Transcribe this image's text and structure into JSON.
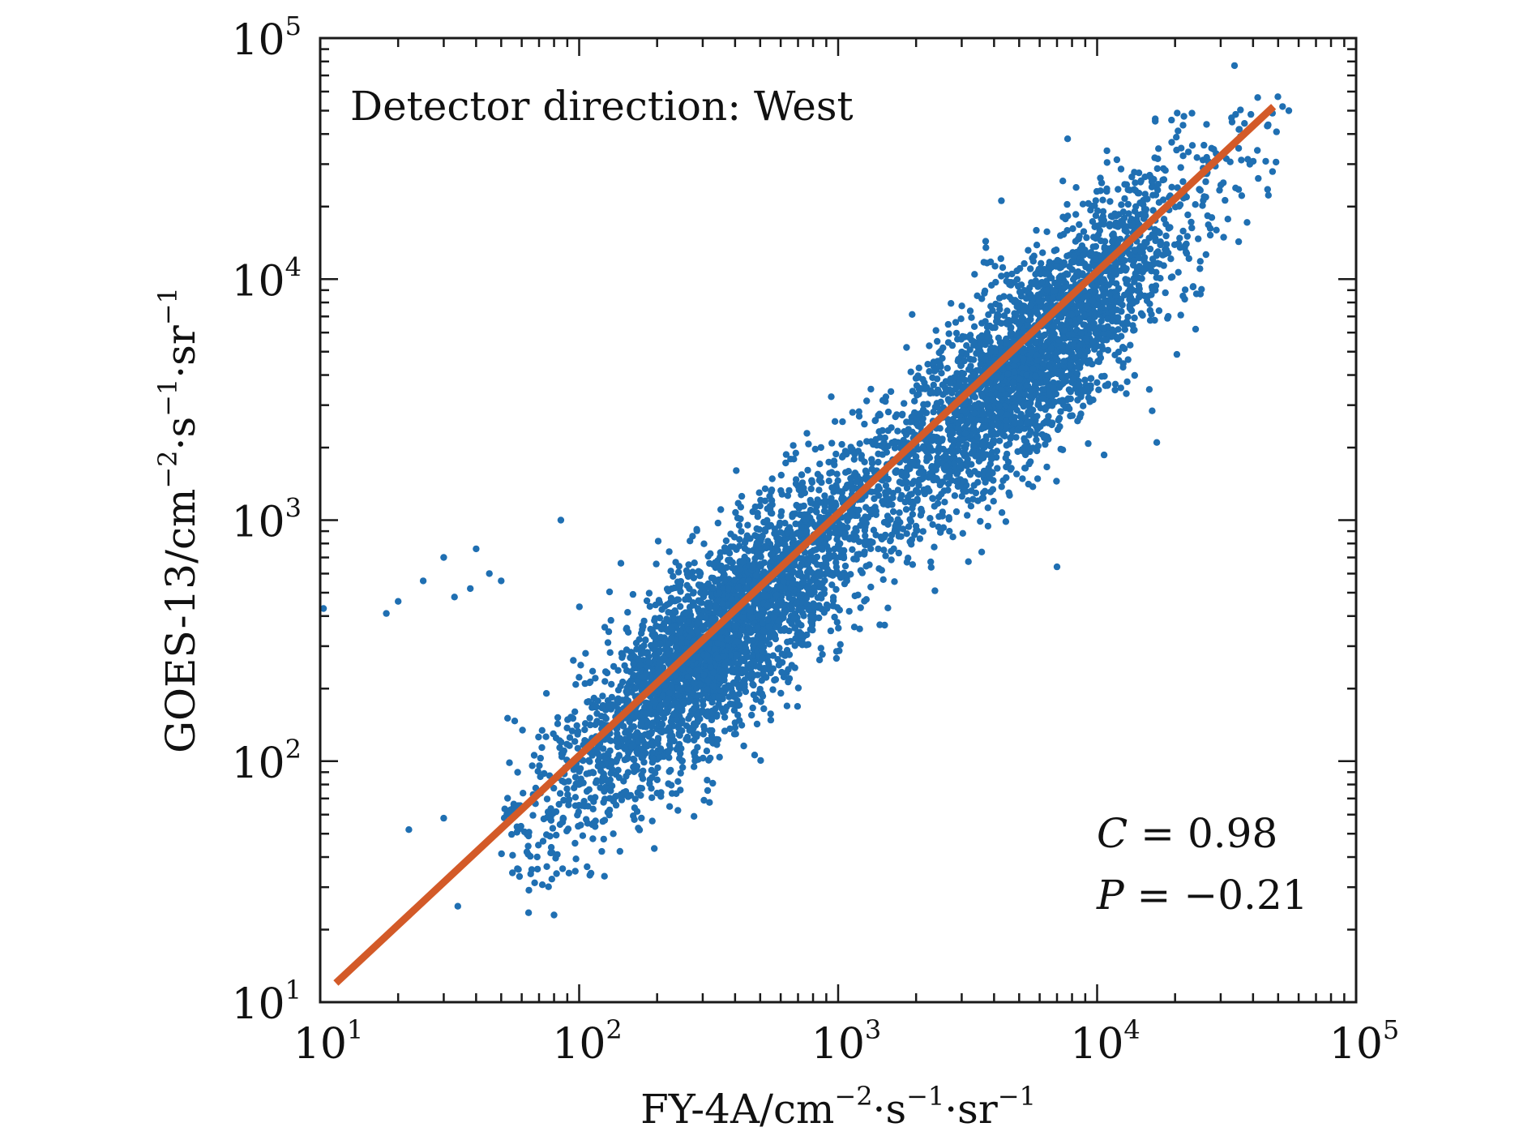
{
  "chart_data": {
    "type": "scatter",
    "x_scale": "log",
    "y_scale": "log",
    "xlim": [
      10,
      100000
    ],
    "ylim": [
      10,
      100000
    ],
    "x_ticks": [
      {
        "base": "10",
        "exp": "1"
      },
      {
        "base": "10",
        "exp": "2"
      },
      {
        "base": "10",
        "exp": "3"
      },
      {
        "base": "10",
        "exp": "4"
      },
      {
        "base": "10",
        "exp": "5"
      }
    ],
    "y_ticks": [
      {
        "base": "10",
        "exp": "1"
      },
      {
        "base": "10",
        "exp": "2"
      },
      {
        "base": "10",
        "exp": "3"
      },
      {
        "base": "10",
        "exp": "4"
      },
      {
        "base": "10",
        "exp": "5"
      }
    ],
    "xlabel": {
      "parts": [
        {
          "t": "FY-4A/cm",
          "sup": false
        },
        {
          "t": "−2",
          "sup": true
        },
        {
          "t": "·s",
          "sup": false
        },
        {
          "t": "−1",
          "sup": true
        },
        {
          "t": "·sr",
          "sup": false
        },
        {
          "t": "−1",
          "sup": true
        }
      ]
    },
    "ylabel": {
      "parts": [
        {
          "t": "GOES-13/cm",
          "sup": false
        },
        {
          "t": "−2",
          "sup": true
        },
        {
          "t": "·s",
          "sup": false
        },
        {
          "t": "−1",
          "sup": true
        },
        {
          "t": "·sr",
          "sup": false
        },
        {
          "t": "−1",
          "sup": true
        }
      ]
    },
    "annotation": "Detector direction: West",
    "stats": [
      {
        "label": "C",
        "value": "= 0.98"
      },
      {
        "label": "P",
        "value": "= −0.21"
      }
    ],
    "fit_line": {
      "x": [
        11.5,
        48000
      ],
      "y": [
        12,
        52000
      ]
    },
    "grid": false,
    "point_color": "#1f6fb2",
    "line_color": "#d35a28",
    "point_count": 6000,
    "outliers": [
      {
        "x": 10.3,
        "y": 430
      },
      {
        "x": 18,
        "y": 410
      },
      {
        "x": 20,
        "y": 460
      },
      {
        "x": 25,
        "y": 560
      },
      {
        "x": 30,
        "y": 700
      },
      {
        "x": 33,
        "y": 480
      },
      {
        "x": 38,
        "y": 520
      },
      {
        "x": 40,
        "y": 760
      },
      {
        "x": 45,
        "y": 600
      },
      {
        "x": 50,
        "y": 560
      },
      {
        "x": 22,
        "y": 52
      },
      {
        "x": 30,
        "y": 58
      },
      {
        "x": 34,
        "y": 25
      },
      {
        "x": 80,
        "y": 23
      },
      {
        "x": 85,
        "y": 1000
      },
      {
        "x": 7000,
        "y": 640
      },
      {
        "x": 17000,
        "y": 2100
      },
      {
        "x": 24000,
        "y": 6200
      },
      {
        "x": 52000,
        "y": 52000
      },
      {
        "x": 55000,
        "y": 50000
      }
    ]
  }
}
